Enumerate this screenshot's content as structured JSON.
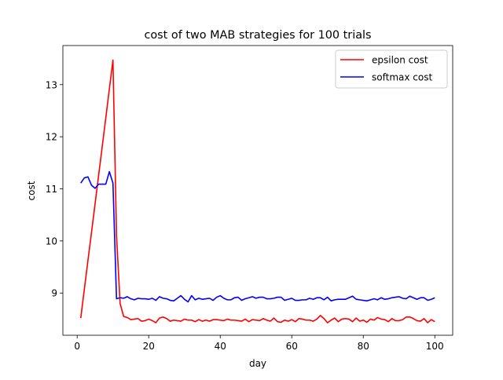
{
  "chart_data": {
    "type": "line",
    "title": "cost of two MAB strategies for 100 trials",
    "xlabel": "day",
    "ylabel": "cost",
    "xlim": [
      -4,
      105
    ],
    "ylim": [
      8.19,
      13.75
    ],
    "xticks": [
      0,
      20,
      40,
      60,
      80,
      100
    ],
    "yticks": [
      9,
      10,
      11,
      12,
      13
    ],
    "grid": false,
    "legend_position": "top-right",
    "x": [
      1,
      2,
      3,
      4,
      5,
      6,
      7,
      8,
      9,
      10,
      11,
      12,
      13,
      14,
      15,
      16,
      17,
      18,
      19,
      20,
      21,
      22,
      23,
      24,
      25,
      26,
      27,
      28,
      29,
      30,
      31,
      32,
      33,
      34,
      35,
      36,
      37,
      38,
      39,
      40,
      41,
      42,
      43,
      44,
      45,
      46,
      47,
      48,
      49,
      50,
      51,
      52,
      53,
      54,
      55,
      56,
      57,
      58,
      59,
      60,
      61,
      62,
      63,
      64,
      65,
      66,
      67,
      68,
      69,
      70,
      71,
      72,
      73,
      74,
      75,
      76,
      77,
      78,
      79,
      80,
      81,
      82,
      83,
      84,
      85,
      86,
      87,
      88,
      89,
      90,
      91,
      92,
      93,
      94,
      95,
      96,
      97,
      98,
      99,
      100
    ],
    "series": [
      {
        "name": "epsilon cost",
        "color": "#ff0000",
        "values": [
          8.52,
          9.07,
          9.62,
          10.16,
          10.71,
          11.26,
          11.81,
          12.36,
          12.92,
          13.47,
          10.1,
          8.8,
          8.55,
          8.53,
          8.49,
          8.5,
          8.51,
          8.46,
          8.47,
          8.5,
          8.47,
          8.43,
          8.52,
          8.54,
          8.51,
          8.46,
          8.48,
          8.47,
          8.46,
          8.5,
          8.48,
          8.48,
          8.45,
          8.49,
          8.46,
          8.48,
          8.46,
          8.49,
          8.49,
          8.48,
          8.47,
          8.5,
          8.48,
          8.48,
          8.47,
          8.46,
          8.5,
          8.45,
          8.49,
          8.48,
          8.47,
          8.51,
          8.48,
          8.46,
          8.52,
          8.45,
          8.44,
          8.48,
          8.46,
          8.49,
          8.45,
          8.51,
          8.5,
          8.48,
          8.48,
          8.46,
          8.5,
          8.57,
          8.51,
          8.43,
          8.48,
          8.52,
          8.45,
          8.5,
          8.51,
          8.5,
          8.45,
          8.52,
          8.46,
          8.48,
          8.44,
          8.5,
          8.48,
          8.53,
          8.5,
          8.49,
          8.45,
          8.51,
          8.47,
          8.47,
          8.49,
          8.54,
          8.54,
          8.51,
          8.47,
          8.46,
          8.51,
          8.43,
          8.49,
          8.45
        ]
      },
      {
        "name": "softmax cost",
        "color": "#0000ff",
        "values": [
          11.11,
          11.21,
          11.23,
          11.07,
          11.01,
          11.09,
          11.09,
          11.09,
          11.33,
          11.11,
          8.89,
          8.91,
          8.9,
          8.93,
          8.89,
          8.87,
          8.9,
          8.89,
          8.89,
          8.88,
          8.9,
          8.86,
          8.93,
          8.9,
          8.89,
          8.86,
          8.85,
          8.9,
          8.95,
          8.88,
          8.83,
          8.95,
          8.87,
          8.9,
          8.88,
          8.89,
          8.9,
          8.86,
          8.92,
          8.95,
          8.9,
          8.87,
          8.87,
          8.91,
          8.92,
          8.86,
          8.89,
          8.91,
          8.93,
          8.9,
          8.92,
          8.92,
          8.89,
          8.89,
          8.9,
          8.92,
          8.92,
          8.86,
          8.88,
          8.9,
          8.86,
          8.86,
          8.87,
          8.87,
          8.9,
          8.88,
          8.91,
          8.91,
          8.87,
          8.92,
          8.85,
          8.87,
          8.88,
          8.88,
          8.88,
          8.91,
          8.94,
          8.88,
          8.87,
          8.86,
          8.85,
          8.87,
          8.89,
          8.87,
          8.91,
          8.88,
          8.89,
          8.91,
          8.92,
          8.93,
          8.9,
          8.89,
          8.94,
          8.91,
          8.88,
          8.91,
          8.91,
          8.86,
          8.88,
          8.91
        ]
      }
    ]
  }
}
